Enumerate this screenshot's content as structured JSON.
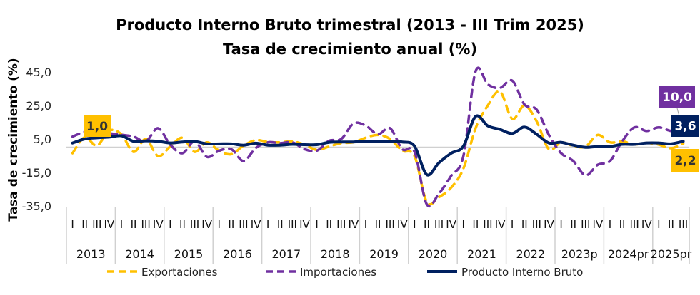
{
  "chart_data": {
    "type": "line",
    "title": "Producto Interno Bruto trimestral (2013 - III Trim 2025)",
    "subtitle": "Tasa de crecimiento anual (%)",
    "ylabel": "Tasa de crecimiento (%)",
    "xlabel": "",
    "ylim": [
      -35,
      45
    ],
    "yticks": [
      45,
      25,
      5,
      -15,
      -35
    ],
    "ytick_labels": [
      "45,0",
      "25,0",
      "5,0",
      "-15,0",
      "-35,0"
    ],
    "years": [
      "2013",
      "2014",
      "2015",
      "2016",
      "2017",
      "2018",
      "2019",
      "2020",
      "2021",
      "2022",
      "2023p",
      "2024pr",
      "2025pr"
    ],
    "quarters_per_year": [
      4,
      4,
      4,
      4,
      4,
      4,
      4,
      4,
      4,
      4,
      4,
      4,
      3
    ],
    "quarter_labels": [
      "I",
      "II",
      "III",
      "IV"
    ],
    "legend_position": "bottom",
    "series": [
      {
        "name": "Exportaciones",
        "color": "#FFC000",
        "style": "dashed",
        "values": [
          -3.5,
          6.0,
          1.0,
          10.0,
          7.8,
          -2.7,
          5.0,
          -5.2,
          0.5,
          5.7,
          -2.7,
          3.0,
          -2.0,
          -4.1,
          1.0,
          4.3,
          3.2,
          3.0,
          3.6,
          1.6,
          -1.5,
          0.5,
          2.5,
          3.0,
          5.7,
          7.4,
          5.0,
          -2.0,
          -5.2,
          -32.6,
          -29.7,
          -24.0,
          -12.7,
          11.4,
          25.0,
          33.3,
          17.0,
          25.0,
          15.5,
          -1.1,
          3.0,
          0.8,
          0.5,
          7.4,
          3.0,
          3.6,
          1.8,
          2.6,
          1.6,
          -0.5,
          2.2
        ]
      },
      {
        "name": "Importaciones",
        "color": "#7030A0",
        "style": "dashed",
        "values": [
          6.4,
          9.3,
          10.0,
          8.4,
          7.5,
          6.4,
          3.6,
          11.4,
          1.6,
          -3.5,
          3.6,
          -5.7,
          -2.0,
          -1.1,
          -8.2,
          -0.4,
          3.0,
          2.5,
          3.0,
          -1.1,
          -2.0,
          3.9,
          5.0,
          14.2,
          13.0,
          7.8,
          11.4,
          -1.1,
          -2.7,
          -34.0,
          -27.6,
          -17.0,
          -5.2,
          45.4,
          37.6,
          35.5,
          39.8,
          25.6,
          22.5,
          7.4,
          -3.5,
          -8.2,
          -16.7,
          -10.4,
          -8.2,
          3.6,
          11.9,
          9.8,
          11.9,
          9.8,
          10.0
        ]
      },
      {
        "name": "Producto Interno Bruto",
        "color": "#002060",
        "style": "solid",
        "values": [
          2.6,
          5.0,
          5.7,
          6.1,
          6.9,
          3.6,
          3.9,
          3.6,
          2.6,
          3.2,
          3.5,
          2.1,
          2.1,
          2.1,
          1.3,
          2.5,
          1.3,
          1.3,
          1.8,
          1.6,
          1.6,
          3.0,
          3.2,
          3.2,
          3.6,
          3.3,
          3.3,
          3.2,
          0.7,
          -16.3,
          -9.2,
          -3.5,
          0.7,
          18.5,
          12.8,
          10.7,
          8.3,
          12.1,
          7.8,
          2.6,
          3.0,
          1.3,
          0.0,
          0.5,
          0.5,
          1.8,
          1.8,
          2.6,
          2.6,
          2.1,
          3.6
        ]
      }
    ],
    "data_labels": [
      {
        "series": "Exportaciones",
        "index": 2,
        "text": "1,0"
      },
      {
        "series": "Importaciones",
        "index": 50,
        "text": "10,0"
      },
      {
        "series": "Producto Interno Bruto",
        "index": 50,
        "text": "3,6"
      },
      {
        "series": "Exportaciones",
        "index": 50,
        "text": "2,2"
      }
    ]
  }
}
